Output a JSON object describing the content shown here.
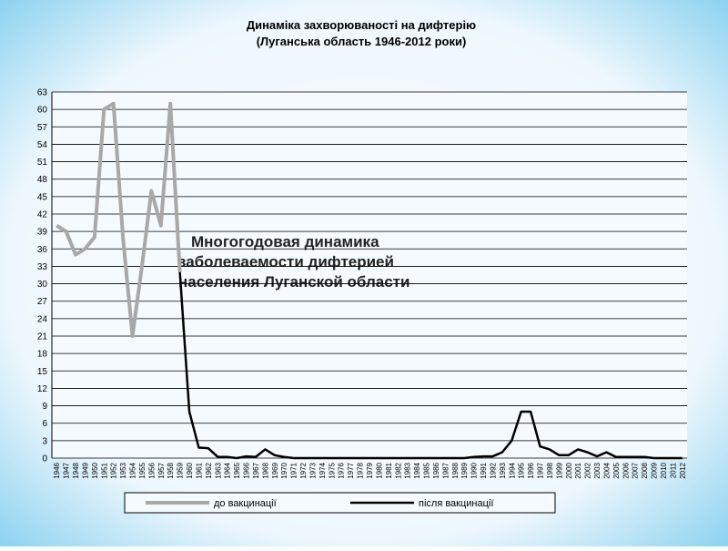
{
  "chart_data": {
    "type": "line",
    "title": "Динаміка захворюваності  на дифтерію",
    "subtitle": "(Луганська область 1946-2012 роки)",
    "annotation": [
      "Многогодовая динамика",
      "заболеваемости дифтерией",
      "населения Луганской области"
    ],
    "categories": [
      "1946",
      "1947",
      "1948",
      "1949",
      "1950",
      "1951",
      "1952",
      "1953",
      "1954",
      "1955",
      "1956",
      "1957",
      "1958",
      "1959",
      "1960",
      "1961",
      "1962",
      "1963",
      "1964",
      "1965",
      "1966",
      "1967",
      "1968",
      "1969",
      "1970",
      "1971",
      "1972",
      "1973",
      "1974",
      "1975",
      "1976",
      "1977",
      "1978",
      "1979",
      "1980",
      "1981",
      "1982",
      "1983",
      "1984",
      "1985",
      "1986",
      "1987",
      "1988",
      "1989",
      "1990",
      "1991",
      "1992",
      "1993",
      "1994",
      "1995",
      "1996",
      "1997",
      "1998",
      "1999",
      "2000",
      "2001",
      "2002",
      "2003",
      "2004",
      "2005",
      "2006",
      "2007",
      "2008",
      "2009",
      "2010",
      "2011",
      "2012"
    ],
    "series": [
      {
        "name": "до вакцинації",
        "color": "#a8a8a8",
        "values": [
          40,
          39,
          35,
          36,
          38,
          60,
          61,
          38,
          21,
          33,
          46,
          40,
          61,
          32,
          null,
          null,
          null,
          null,
          null,
          null,
          null,
          null,
          null,
          null,
          null,
          null,
          null,
          null,
          null,
          null,
          null,
          null,
          null,
          null,
          null,
          null,
          null,
          null,
          null,
          null,
          null,
          null,
          null,
          null,
          null,
          null,
          null,
          null,
          null,
          null,
          null,
          null,
          null,
          null,
          null,
          null,
          null,
          null,
          null,
          null,
          null,
          null,
          null,
          null,
          null,
          null,
          null
        ]
      },
      {
        "name": "після вакцинації",
        "color": "#000000",
        "values": [
          null,
          null,
          null,
          null,
          null,
          null,
          null,
          null,
          null,
          null,
          null,
          null,
          null,
          32,
          8,
          1.8,
          1.7,
          0.2,
          0.2,
          0,
          0.3,
          0.2,
          1.5,
          0.5,
          0.2,
          0,
          0,
          0,
          0,
          0,
          0,
          0,
          0,
          0,
          0,
          0,
          0,
          0,
          0,
          0,
          0,
          0,
          0,
          0,
          0.2,
          0.3,
          0.3,
          1,
          3,
          8,
          8,
          2,
          1.5,
          0.5,
          0.5,
          1.5,
          1,
          0.3,
          1,
          0.2,
          0.2,
          0.2,
          0.2,
          0,
          0,
          0,
          0
        ]
      }
    ],
    "ylim": [
      0,
      63
    ],
    "yticks": [
      0,
      3,
      6,
      9,
      12,
      15,
      18,
      21,
      24,
      27,
      30,
      33,
      36,
      39,
      42,
      45,
      48,
      51,
      54,
      57,
      60,
      63
    ],
    "grid": true
  }
}
